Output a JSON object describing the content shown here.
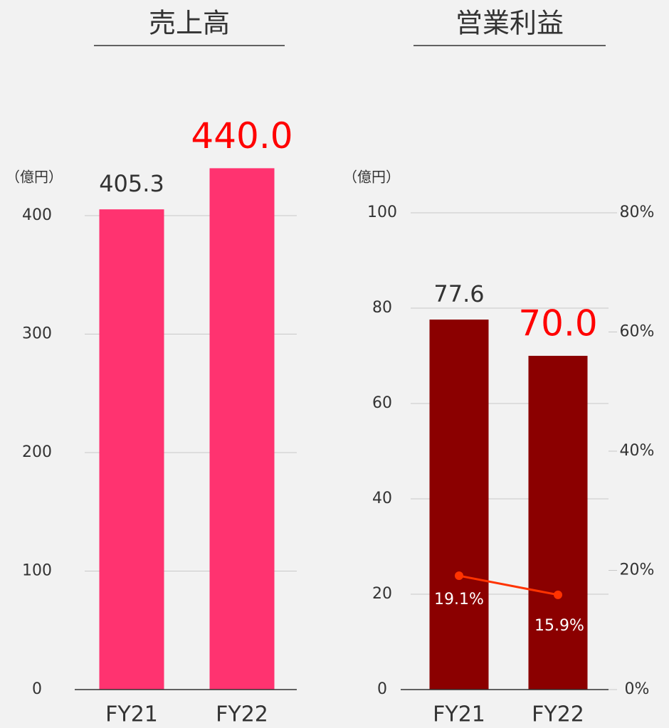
{
  "chart_data": [
    {
      "type": "bar",
      "title": "売上高",
      "unit_label": "（億円）",
      "categories": [
        "FY21",
        "FY22"
      ],
      "series": [
        {
          "values": [
            405.3,
            440.0
          ],
          "value_labels": [
            "405.3",
            "440.0"
          ],
          "color": "#ff3370"
        }
      ],
      "value_label_colors": [
        "#333333",
        "#ff0000"
      ],
      "ylim": [
        0,
        400
      ],
      "yticks": [
        0,
        100,
        200,
        300,
        400
      ],
      "grid": true
    },
    {
      "type": "bar",
      "title": "営業利益",
      "unit_label": "（億円）",
      "categories": [
        "FY21",
        "FY22"
      ],
      "series": [
        {
          "values": [
            77.6,
            70.0
          ],
          "value_labels": [
            "77.6",
            "70.0"
          ],
          "color": "#8b0000"
        },
        {
          "type": "line",
          "axis": "y2",
          "values": [
            19.1,
            15.9
          ],
          "value_labels": [
            "19.1%",
            "15.9%"
          ],
          "color": "#ff3300"
        }
      ],
      "value_label_colors": [
        "#333333",
        "#ff0000"
      ],
      "ylim": [
        0,
        100
      ],
      "yticks": [
        0,
        20,
        40,
        60,
        80,
        100
      ],
      "y2lim": [
        0,
        80
      ],
      "y2ticks": [
        {
          "value": 0,
          "label": "0%"
        },
        {
          "value": 20,
          "label": "20%"
        },
        {
          "value": 40,
          "label": "40%"
        },
        {
          "value": 60,
          "label": "60%"
        },
        {
          "value": 80,
          "label": "80%"
        }
      ],
      "grid": true
    }
  ]
}
